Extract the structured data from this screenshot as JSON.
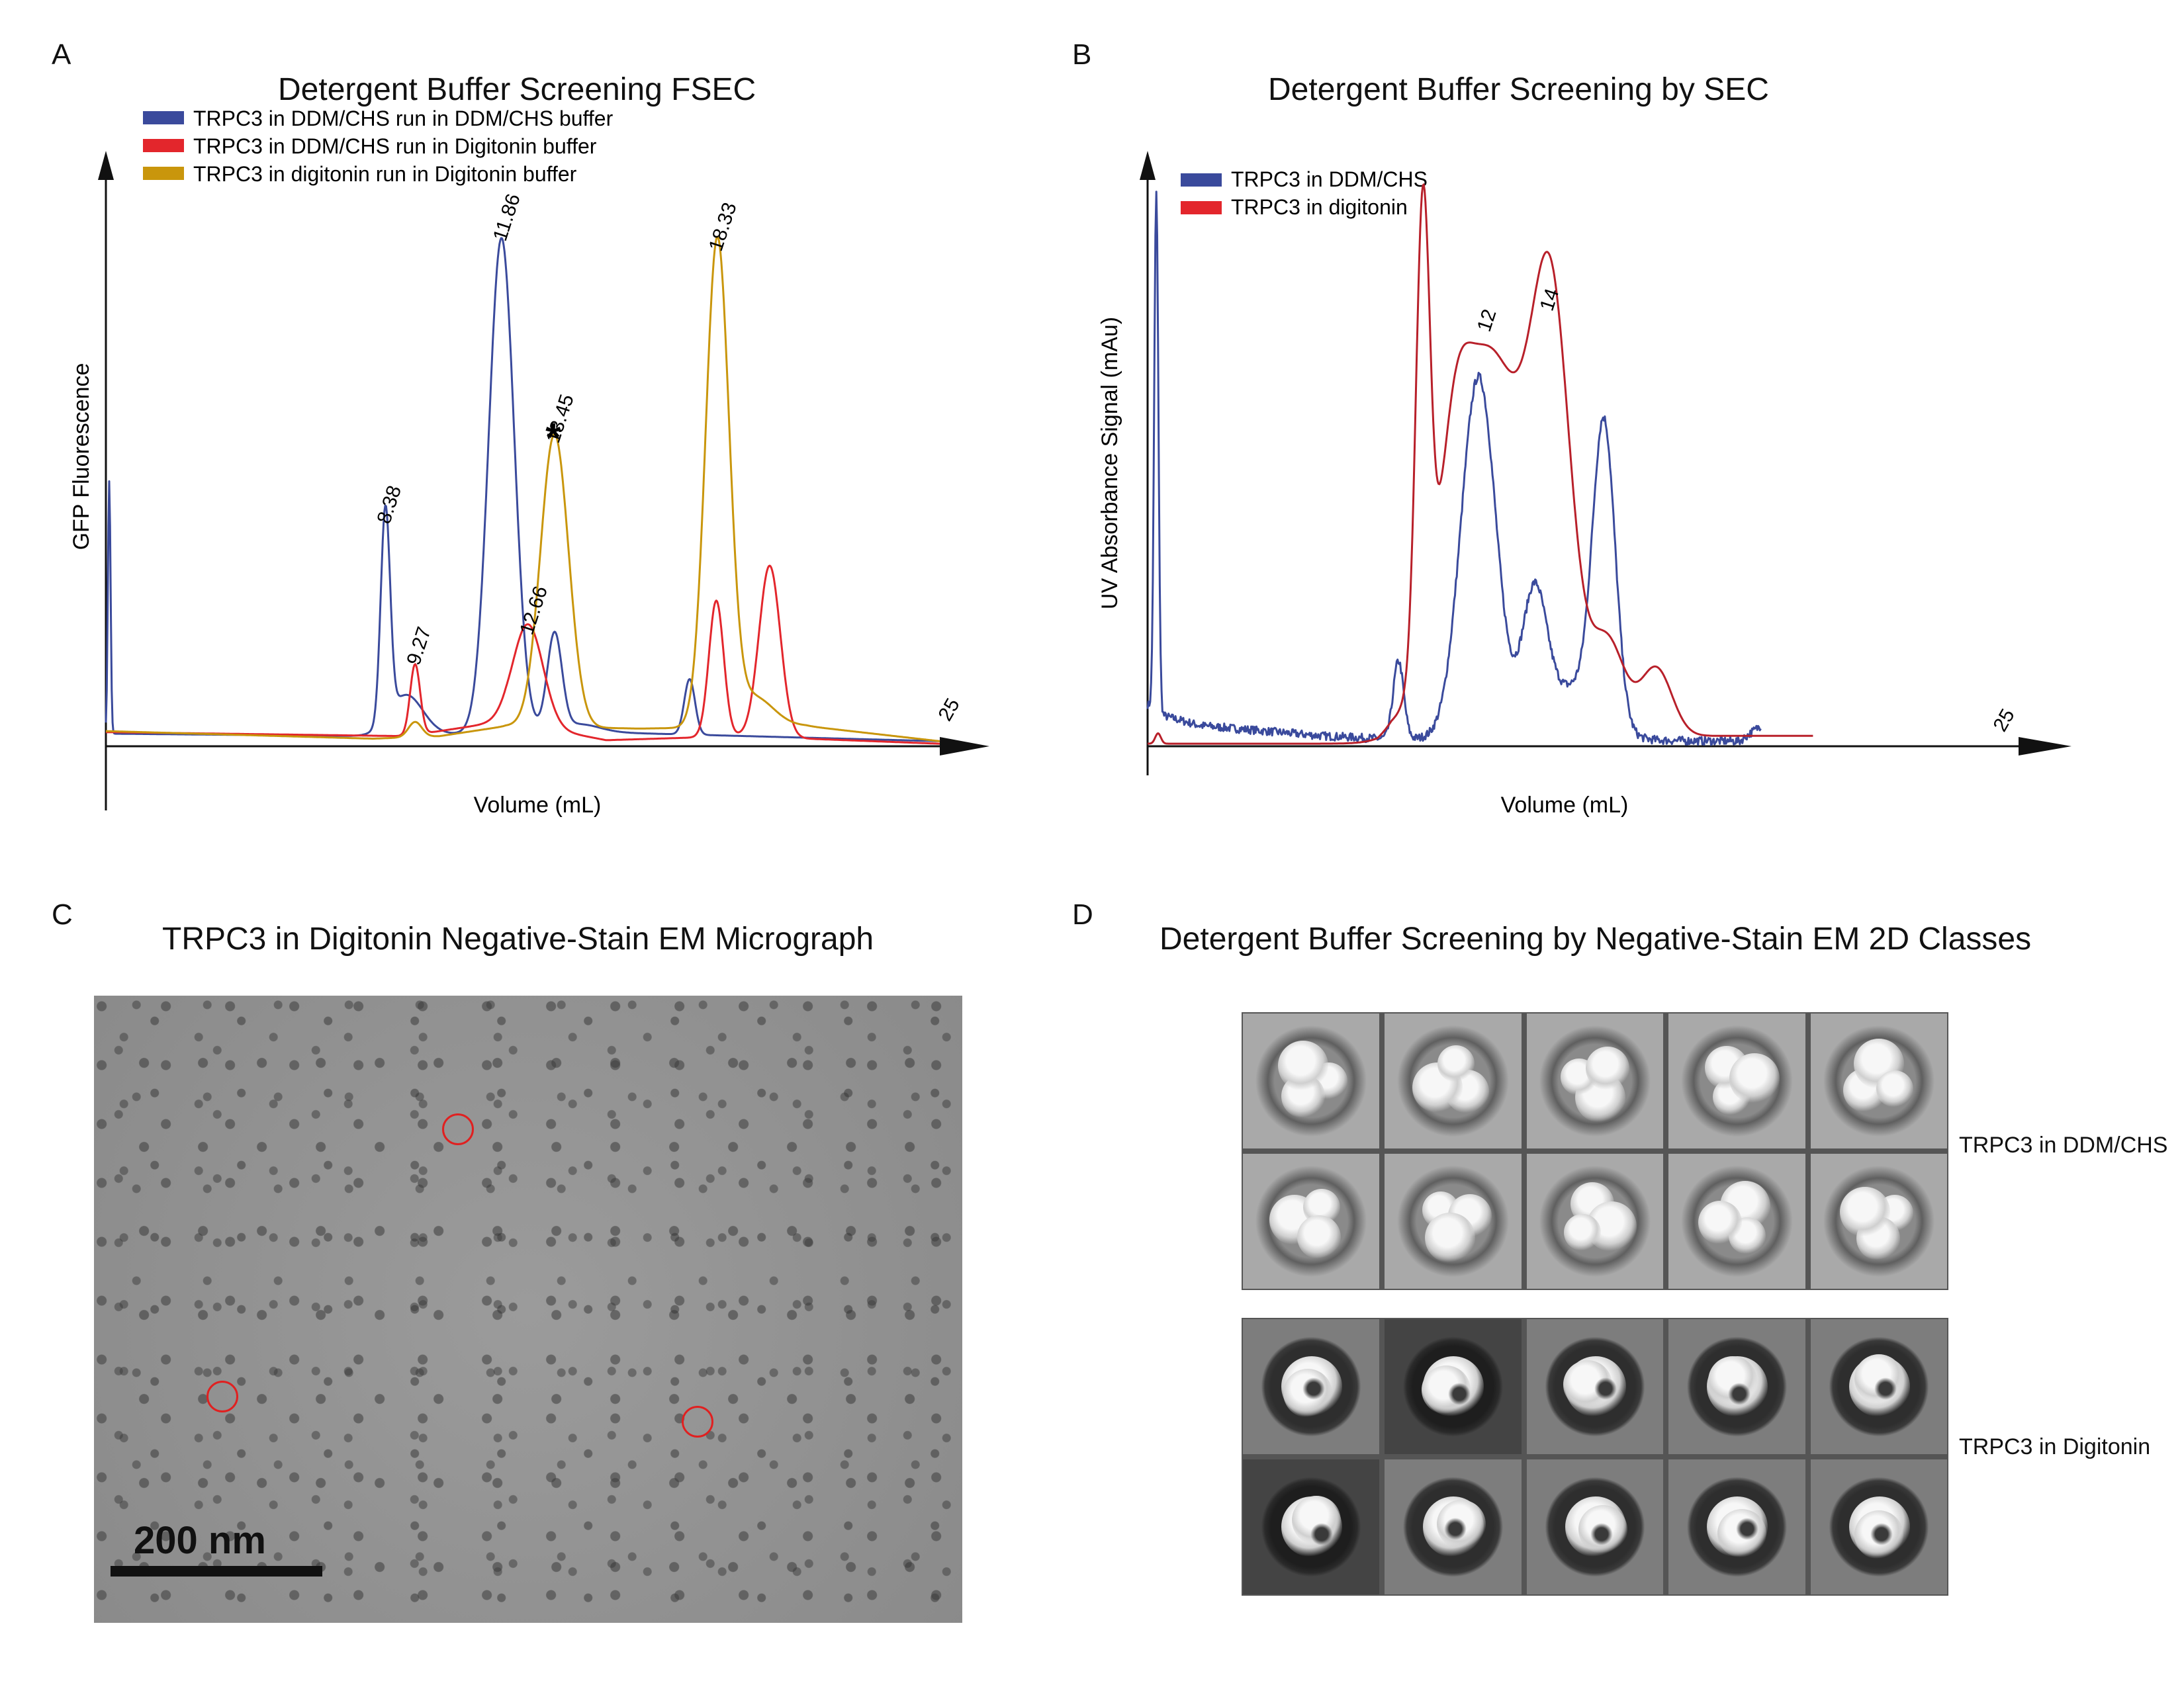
{
  "panels": {
    "a": {
      "letter": "A",
      "title": "Detergent Buffer Screening FSEC"
    },
    "b": {
      "letter": "B",
      "title": "Detergent Buffer Screening by SEC"
    },
    "c": {
      "letter": "C",
      "title": "TRPC3 in Digitonin Negative-Stain EM Micrograph"
    },
    "d": {
      "letter": "D",
      "title": "Detergent Buffer Screening by Negative-Stain EM 2D Classes"
    }
  },
  "colors": {
    "blue": "#3a4a9c",
    "red": "#e3262c",
    "gold": "#c9960c",
    "darkred": "#b8202a"
  },
  "chart_data": [
    {
      "type": "line",
      "title": "Detergent Buffer Screening FSEC",
      "xlabel": "Volume (mL)",
      "ylabel": "GFP Fluorescence",
      "xlim": [
        0,
        25
      ],
      "ylim": [
        0,
        100
      ],
      "x_end_label": "25",
      "grid": false,
      "legend": "top-left",
      "series": [
        {
          "name": "TRPC3 in DDM/CHS run in DDM/CHS buffer",
          "color": "#3a4a9c",
          "baseline": [
            [
              0,
              2.5
            ],
            [
              8,
              2.0
            ],
            [
              13.5,
              3
            ],
            [
              25,
              1
            ]
          ],
          "peaks": [
            [
              0.1,
              50,
              0.04
            ],
            [
              8.38,
              42,
              0.14
            ],
            [
              9.0,
              8,
              0.5
            ],
            [
              11.86,
              98,
              0.38
            ],
            [
              13.45,
              19,
              0.22
            ],
            [
              14.2,
              1.5,
              0.6
            ],
            [
              17.5,
              11,
              0.16
            ]
          ]
        },
        {
          "name": "TRPC3 in DDM/CHS run in Digitonin buffer",
          "color": "#e3262c",
          "baseline": [
            [
              0,
              2.8
            ],
            [
              9,
              2.0
            ],
            [
              12,
              5
            ],
            [
              15,
              1.2
            ],
            [
              19,
              2
            ],
            [
              25,
              0.5
            ]
          ],
          "peaks": [
            [
              9.27,
              14,
              0.15
            ],
            [
              12.66,
              20,
              0.45
            ],
            [
              18.3,
              27,
              0.22
            ],
            [
              19.9,
              34,
              0.32
            ]
          ]
        },
        {
          "name": "TRPC3 in digitonin run in Digitonin buffer",
          "color": "#c9960c",
          "baseline": [
            [
              0,
              3
            ],
            [
              8,
              1.5
            ],
            [
              10,
              2
            ],
            [
              12,
              4
            ],
            [
              16,
              3.5
            ],
            [
              21,
              4
            ],
            [
              25,
              1
            ]
          ],
          "peaks": [
            [
              9.27,
              3,
              0.2
            ],
            [
              13.45,
              58,
              0.42
            ],
            [
              18.33,
              96,
              0.35
            ],
            [
              19.4,
              6,
              0.6
            ]
          ]
        }
      ],
      "peak_labels": [
        {
          "text": "8.38",
          "x": 8.38,
          "y": 42
        },
        {
          "text": "9.27",
          "x": 9.27,
          "y": 14
        },
        {
          "text": "11.86",
          "x": 11.86,
          "y": 98
        },
        {
          "text": "12.66",
          "x": 12.66,
          "y": 20
        },
        {
          "text": "13.45",
          "x": 13.45,
          "y": 58
        },
        {
          "text": "18.33",
          "x": 18.33,
          "y": 96
        }
      ],
      "annotation": {
        "text": "*",
        "x": 13.45,
        "y": 58
      }
    },
    {
      "type": "line",
      "title": "Detergent Buffer Screening by SEC",
      "xlabel": "Volume (mL)",
      "ylabel": "UV Absorbance Signal (mAu)",
      "xlim": [
        0,
        25
      ],
      "ylim": [
        0,
        100
      ],
      "x_end_label": "25",
      "grid": false,
      "legend": "top-left",
      "series": [
        {
          "name": "TRPC3 in DDM/CHS",
          "color": "#3a4a9c",
          "baseline": [
            [
              0,
              8
            ],
            [
              0.4,
              6
            ],
            [
              1.5,
              4
            ],
            [
              5,
              2
            ],
            [
              6.6,
              1.5
            ],
            [
              17,
              1
            ],
            [
              17.6,
              4
            ]
          ],
          "noise": true,
          "peaks": [
            [
              0.25,
              100,
              0.06
            ],
            [
              7.2,
              15,
              0.15
            ],
            [
              9.5,
              70,
              0.5
            ],
            [
              11.1,
              26,
              0.35
            ],
            [
              13.1,
              57,
              0.32
            ],
            [
              12.2,
              10,
              0.8
            ]
          ]
        },
        {
          "name": "TRPC3 in digitonin",
          "color": "#b8202a",
          "baseline": [
            [
              0,
              0.5
            ],
            [
              6.6,
              0.5
            ],
            [
              7.0,
              2
            ],
            [
              18.5,
              2
            ],
            [
              19.1,
              2
            ]
          ],
          "peaks": [
            [
              0.3,
              2,
              0.08
            ],
            [
              7.9,
              88,
              0.2
            ],
            [
              9.8,
              74,
              1.1
            ],
            [
              11.6,
              72,
              0.55
            ],
            [
              13.2,
              18,
              0.5
            ],
            [
              14.6,
              13,
              0.45
            ],
            [
              8.8,
              20,
              0.4
            ]
          ]
        }
      ],
      "peak_labels": [
        {
          "text": "12",
          "x": 9.7,
          "y": 78
        },
        {
          "text": "14",
          "x": 11.5,
          "y": 82
        }
      ]
    }
  ],
  "micrograph": {
    "scale_label": "200 nm"
  },
  "classes": {
    "ddm_label": "TRPC3 in DDM/CHS",
    "digitonin_label": "TRPC3 in Digitonin"
  }
}
